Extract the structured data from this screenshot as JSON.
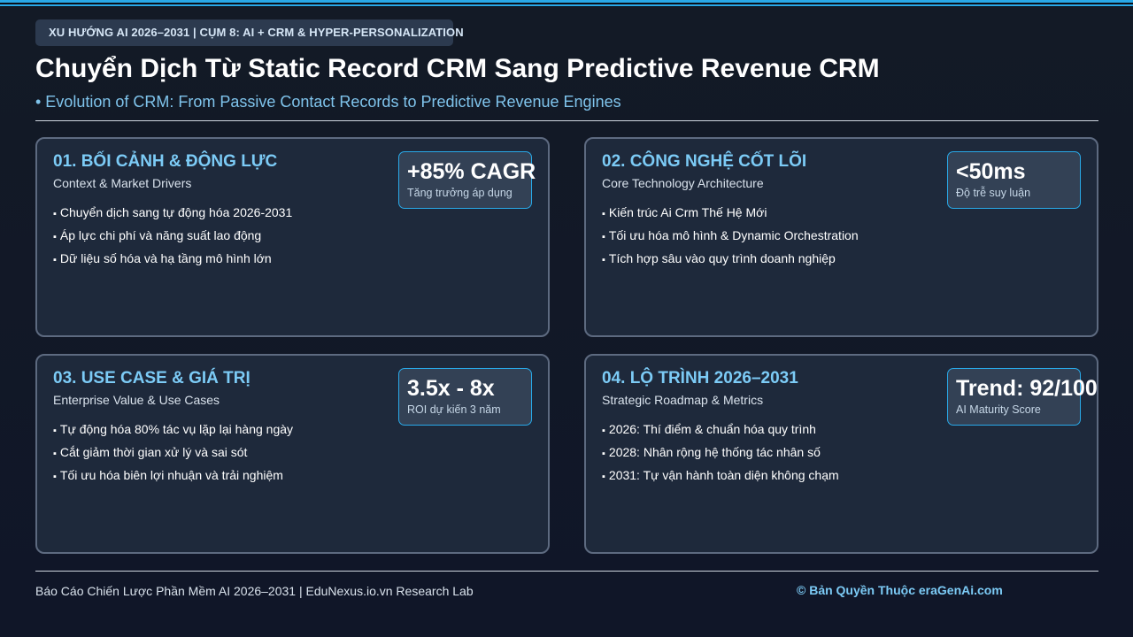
{
  "header": {
    "tag": "XU HƯỚNG AI 2026–2031 | CỤM 8: AI + CRM & HYPER-PERSONALIZATION",
    "title": "Chuyển Dịch Từ Static Record CRM Sang Predictive Revenue CRM",
    "subtitle": "• Evolution of CRM: From Passive Contact Records to Predictive Revenue Engines"
  },
  "cards": [
    {
      "heading": "01. BỐI CẢNH & ĐỘNG LỰC",
      "sub": "Context & Market Drivers",
      "metric": {
        "value": "+85% CAGR",
        "label": "Tăng trưởng áp dụng"
      },
      "items": [
        "Chuyển dịch sang tự động hóa 2026-2031",
        "Áp lực chi phí và năng suất lao động",
        "Dữ liệu số hóa và hạ tầng mô hình lớn"
      ]
    },
    {
      "heading": "02. CÔNG NGHỆ CỐT LÕI",
      "sub": "Core Technology Architecture",
      "metric": {
        "value": "<50ms",
        "label": "Độ trễ suy luận"
      },
      "items": [
        "Kiến trúc Ai Crm Thế Hệ Mới",
        "Tối ưu hóa mô hình & Dynamic Orchestration",
        "Tích hợp sâu vào quy trình doanh nghiệp"
      ]
    },
    {
      "heading": "03. USE CASE & GIÁ TRỊ",
      "sub": "Enterprise Value & Use Cases",
      "metric": {
        "value": "3.5x - 8x",
        "label": "ROI dự kiến 3 năm"
      },
      "items": [
        "Tự động hóa 80% tác vụ lặp lại hàng ngày",
        "Cắt giảm thời gian xử lý và sai sót",
        "Tối ưu hóa biên lợi nhuận và trải nghiệm"
      ]
    },
    {
      "heading": "04. LỘ TRÌNH 2026–2031",
      "sub": "Strategic Roadmap & Metrics",
      "metric": {
        "value": "Trend: 92/100",
        "label": "AI Maturity Score"
      },
      "items": [
        "2026: Thí điểm & chuẩn hóa quy trình",
        "2028: Nhân rộng hệ thống tác nhân số",
        "2031: Tự vận hành toàn diện không chạm"
      ]
    }
  ],
  "footer": {
    "left": "Báo Cáo Chiến Lược Phần Mềm AI 2026–2031 | EduNexus.io.vn Research Lab",
    "right": "© Bản Quyền Thuộc eraGenAi.com"
  },
  "colors": {
    "background": "#131a26",
    "accent": "#29a9e8",
    "heading": "#7ccbf6",
    "card": "#1e293b",
    "card_border": "#5d6a80",
    "metric_box": "#334155"
  }
}
